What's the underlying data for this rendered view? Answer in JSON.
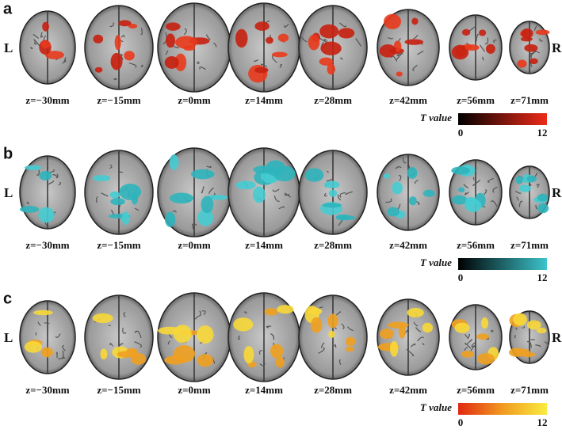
{
  "panels": [
    {
      "label": "a",
      "left": "L",
      "right": "R",
      "slices": [
        "z=−30mm",
        "z=−15mm",
        "z=0mm",
        "z=14mm",
        "z=28mm",
        "z=42mm",
        "z=56mm",
        "z=71mm"
      ],
      "colorbar": {
        "title": "T value",
        "min": 0,
        "max": 12
      }
    },
    {
      "label": "b",
      "left": "L",
      "right": "R",
      "slices": [
        "z=−30mm",
        "z=−15mm",
        "z=0mm",
        "z=14mm",
        "z=28mm",
        "z=42mm",
        "z=56mm",
        "z=71mm"
      ],
      "colorbar": {
        "title": "T value",
        "min": 0,
        "max": 12
      }
    },
    {
      "label": "c",
      "left": "L",
      "right": "R",
      "slices": [
        "z=−30mm",
        "z=−15mm",
        "z=0mm",
        "z=14mm",
        "z=28mm",
        "z=42mm",
        "z=56mm",
        "z=71mm"
      ],
      "colorbar": {
        "title": "T value",
        "min": 0,
        "max": 12
      }
    }
  ]
}
